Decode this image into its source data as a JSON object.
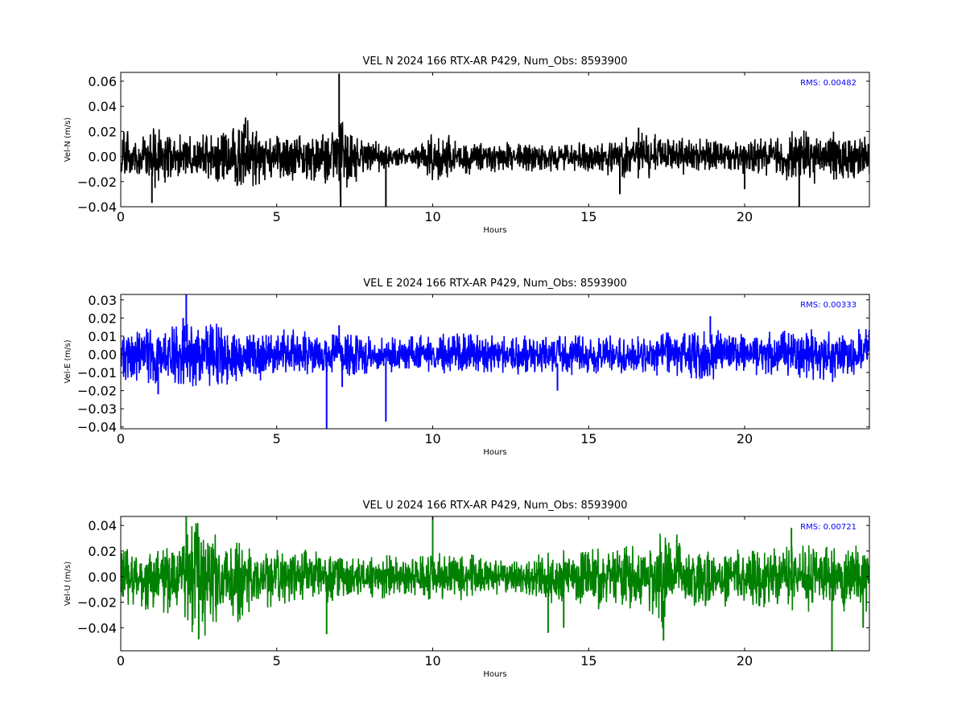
{
  "figure": {
    "background": "#ffffff"
  },
  "chart_data": [
    {
      "type": "line",
      "title": "VEL N 2024 166 RTX-AR  P429, Num_Obs: 8593900",
      "xlabel": "Hours",
      "ylabel": "Vel-N (m/s)",
      "xlim": [
        0,
        24
      ],
      "ylim": [
        -0.04,
        0.067
      ],
      "xticks": [
        0,
        5,
        10,
        15,
        20
      ],
      "xtick_labels": [
        "0",
        "5",
        "10",
        "15",
        "20"
      ],
      "yticks": [
        -0.04,
        -0.02,
        0.0,
        0.02,
        0.04,
        0.06
      ],
      "ytick_labels": [
        "−0.04",
        "−0.02",
        "0.00",
        "0.02",
        "0.04",
        "0.06"
      ],
      "grid": false,
      "annotation": {
        "text": "RMS:  0.00482",
        "color": "#0000ff"
      },
      "series": [
        {
          "color": "#000000",
          "x": [
            0,
            0.5,
            1,
            1.5,
            2,
            2.5,
            3,
            3.5,
            3.8,
            4,
            4.3,
            4.6,
            5,
            5.5,
            6,
            6.5,
            6.8,
            7,
            7.2,
            7.5,
            8,
            8.5,
            9,
            9.3,
            9.6,
            10,
            10.5,
            11,
            12,
            13,
            14,
            15,
            16,
            16.5,
            17,
            18,
            19,
            20,
            21,
            21.5,
            22,
            23,
            24
          ],
          "upper": [
            0.019,
            0.016,
            0.02,
            0.017,
            0.015,
            0.015,
            0.016,
            0.019,
            0.027,
            0.029,
            0.022,
            0.017,
            0.016,
            0.016,
            0.016,
            0.017,
            0.019,
            0.031,
            0.027,
            0.018,
            0.013,
            0.009,
            0.006,
            0.004,
            0.01,
            0.016,
            0.015,
            0.011,
            0.01,
            0.01,
            0.01,
            0.01,
            0.013,
            0.017,
            0.016,
            0.013,
            0.012,
            0.012,
            0.013,
            0.018,
            0.018,
            0.017,
            0.014
          ],
          "lower": [
            -0.019,
            -0.017,
            -0.025,
            -0.018,
            -0.015,
            -0.015,
            -0.017,
            -0.019,
            -0.024,
            -0.023,
            -0.02,
            -0.019,
            -0.017,
            -0.017,
            -0.016,
            -0.018,
            -0.022,
            -0.028,
            -0.023,
            -0.018,
            -0.012,
            -0.01,
            -0.006,
            -0.004,
            -0.011,
            -0.018,
            -0.016,
            -0.013,
            -0.011,
            -0.011,
            -0.011,
            -0.011,
            -0.015,
            -0.015,
            -0.015,
            -0.013,
            -0.012,
            -0.012,
            -0.014,
            -0.019,
            -0.019,
            -0.019,
            -0.016
          ],
          "spikes": [
            [
              1.0,
              -0.037
            ],
            [
              4.0,
              0.031
            ],
            [
              7.0,
              0.066
            ],
            [
              7.05,
              -0.045
            ],
            [
              8.5,
              -0.042
            ],
            [
              16.0,
              -0.03
            ],
            [
              16.6,
              0.023
            ],
            [
              20.0,
              -0.026
            ],
            [
              21.75,
              -0.045
            ]
          ]
        }
      ]
    },
    {
      "type": "line",
      "title": "VEL E 2024 166 RTX-AR  P429, Num_Obs: 8593900",
      "xlabel": "Hours",
      "ylabel": "Vel-E (m/s)",
      "xlim": [
        0,
        24
      ],
      "ylim": [
        -0.041,
        0.033
      ],
      "xticks": [
        0,
        5,
        10,
        15,
        20
      ],
      "xtick_labels": [
        "0",
        "5",
        "10",
        "15",
        "20"
      ],
      "yticks": [
        -0.04,
        -0.03,
        -0.02,
        -0.01,
        0.0,
        0.01,
        0.02,
        0.03
      ],
      "ytick_labels": [
        "−0.04",
        "−0.03",
        "−0.02",
        "−0.01",
        "0.00",
        "0.01",
        "0.02",
        "0.03"
      ],
      "grid": false,
      "annotation": {
        "text": "RMS:  0.00333",
        "color": "#0000ff"
      },
      "series": [
        {
          "color": "#0000ff",
          "x": [
            0,
            0.5,
            1,
            1.5,
            2,
            2.5,
            3,
            3.5,
            4,
            4.5,
            5,
            5.5,
            6,
            6.5,
            7,
            7.5,
            8,
            8.5,
            9,
            10,
            11,
            12,
            13,
            14,
            15,
            16,
            17,
            18,
            18.5,
            19,
            20,
            21,
            22,
            22.5,
            23,
            24
          ],
          "upper": [
            0.012,
            0.012,
            0.013,
            0.013,
            0.014,
            0.015,
            0.015,
            0.014,
            0.013,
            0.013,
            0.012,
            0.012,
            0.011,
            0.01,
            0.01,
            0.009,
            0.009,
            0.009,
            0.008,
            0.01,
            0.01,
            0.009,
            0.01,
            0.009,
            0.009,
            0.009,
            0.01,
            0.011,
            0.012,
            0.012,
            0.01,
            0.011,
            0.012,
            0.013,
            0.012,
            0.012
          ],
          "lower": [
            -0.012,
            -0.013,
            -0.014,
            -0.014,
            -0.015,
            -0.016,
            -0.016,
            -0.015,
            -0.014,
            -0.013,
            -0.012,
            -0.012,
            -0.011,
            -0.011,
            -0.011,
            -0.01,
            -0.009,
            -0.009,
            -0.008,
            -0.01,
            -0.01,
            -0.009,
            -0.01,
            -0.01,
            -0.01,
            -0.01,
            -0.01,
            -0.011,
            -0.012,
            -0.012,
            -0.01,
            -0.011,
            -0.013,
            -0.014,
            -0.013,
            -0.013
          ],
          "spikes": [
            [
              1.2,
              -0.022
            ],
            [
              2.0,
              0.02
            ],
            [
              2.1,
              0.033
            ],
            [
              6.6,
              -0.041
            ],
            [
              7.0,
              0.016
            ],
            [
              7.1,
              -0.018
            ],
            [
              8.5,
              -0.037
            ],
            [
              14.0,
              -0.02
            ],
            [
              18.9,
              0.021
            ]
          ]
        }
      ]
    },
    {
      "type": "line",
      "title": "VEL U 2024 166 RTX-AR  P429, Num_Obs: 8593900",
      "xlabel": "Hours",
      "ylabel": "Vel-U (m/s)",
      "xlim": [
        0,
        24
      ],
      "ylim": [
        -0.058,
        0.047
      ],
      "xticks": [
        0,
        5,
        10,
        15,
        20
      ],
      "xtick_labels": [
        "0",
        "5",
        "10",
        "15",
        "20"
      ],
      "yticks": [
        -0.04,
        -0.02,
        0.0,
        0.02,
        0.04
      ],
      "ytick_labels": [
        "−0.04",
        "−0.02",
        "0.00",
        "0.02",
        "0.04"
      ],
      "grid": false,
      "annotation": {
        "text": "RMS:  0.00721",
        "color": "#0000ff"
      },
      "series": [
        {
          "color": "#008000",
          "x": [
            0,
            0.5,
            1,
            1.5,
            2,
            2.3,
            2.6,
            3,
            3.5,
            3.8,
            4,
            4.5,
            5,
            5.5,
            6,
            6.5,
            7,
            8,
            9,
            10,
            11,
            12,
            12.5,
            13,
            14,
            15,
            16,
            17,
            17.4,
            17.8,
            18,
            19,
            20,
            21,
            22,
            22.5,
            23,
            24
          ],
          "upper": [
            0.022,
            0.02,
            0.018,
            0.022,
            0.03,
            0.04,
            0.042,
            0.03,
            0.022,
            0.027,
            0.024,
            0.02,
            0.018,
            0.019,
            0.018,
            0.016,
            0.016,
            0.015,
            0.014,
            0.016,
            0.016,
            0.012,
            0.009,
            0.014,
            0.018,
            0.02,
            0.02,
            0.022,
            0.035,
            0.03,
            0.02,
            0.02,
            0.018,
            0.02,
            0.021,
            0.02,
            0.02,
            0.022
          ],
          "lower": [
            -0.022,
            -0.021,
            -0.024,
            -0.025,
            -0.032,
            -0.042,
            -0.043,
            -0.032,
            -0.026,
            -0.032,
            -0.026,
            -0.022,
            -0.02,
            -0.02,
            -0.019,
            -0.018,
            -0.017,
            -0.016,
            -0.015,
            -0.017,
            -0.016,
            -0.013,
            -0.01,
            -0.015,
            -0.02,
            -0.022,
            -0.023,
            -0.024,
            -0.038,
            -0.032,
            -0.022,
            -0.022,
            -0.022,
            -0.022,
            -0.024,
            -0.025,
            -0.024,
            -0.024
          ],
          "spikes": [
            [
              2.1,
              0.047
            ],
            [
              2.5,
              -0.049
            ],
            [
              6.6,
              -0.045
            ],
            [
              10.0,
              0.047
            ],
            [
              13.7,
              -0.044
            ],
            [
              14.2,
              -0.04
            ],
            [
              17.4,
              -0.05
            ],
            [
              21.5,
              0.038
            ],
            [
              22.8,
              -0.058
            ],
            [
              23.8,
              -0.04
            ]
          ]
        }
      ]
    }
  ]
}
